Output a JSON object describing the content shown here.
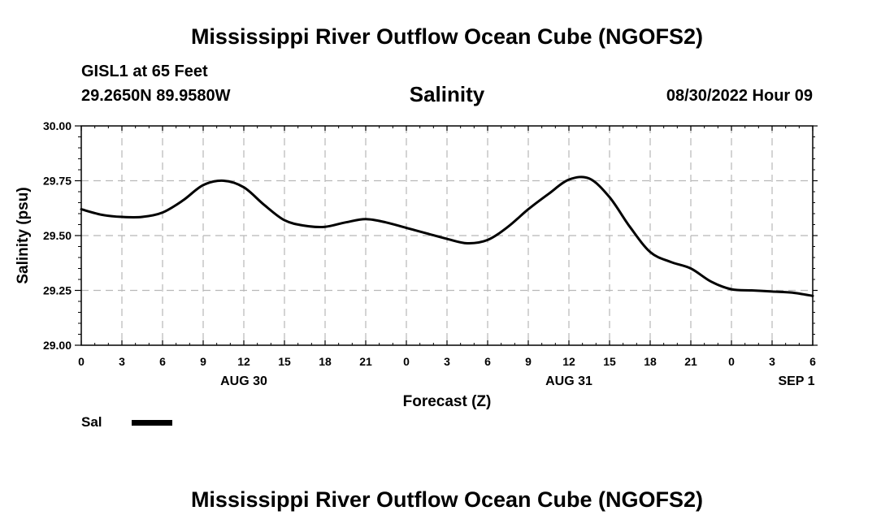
{
  "header": {
    "title": "Mississippi River Outflow Ocean Cube (NGOFS2)",
    "station": "GISL1 at 65 Feet",
    "coordinates": "29.2650N  89.9580W",
    "subtitle": "Salinity",
    "datetime": "08/30/2022 Hour 09"
  },
  "footer": {
    "title": "Mississippi River Outflow Ocean Cube (NGOFS2)"
  },
  "legend": {
    "series_label": "Sal"
  },
  "chart_data": {
    "type": "line",
    "title": "Salinity",
    "xlabel": "Forecast (Z)",
    "ylabel": "Salinity (psu)",
    "xlim": [
      0,
      54
    ],
    "ylim": [
      29.0,
      30.0
    ],
    "y_ticks": [
      30.0,
      29.75,
      29.5,
      29.25,
      29.0
    ],
    "y_tick_labels": [
      "30.00",
      "29.75",
      "29.50",
      "29.25",
      "29.00"
    ],
    "x_ticks": [
      0,
      3,
      6,
      9,
      12,
      15,
      18,
      21,
      24,
      27,
      30,
      33,
      36,
      39,
      42,
      45,
      48,
      51,
      54
    ],
    "x_tick_labels": [
      "0",
      "3",
      "6",
      "9",
      "12",
      "15",
      "18",
      "21",
      "0",
      "3",
      "6",
      "9",
      "12",
      "15",
      "18",
      "21",
      "0",
      "3",
      "6"
    ],
    "date_labels": [
      {
        "x": 12,
        "label": "AUG 30"
      },
      {
        "x": 36,
        "label": "AUG 31"
      },
      {
        "x": 52.8,
        "label": "SEP 1"
      }
    ],
    "grid": true,
    "series": [
      {
        "name": "Sal",
        "x": [
          0,
          1.5,
          3,
          4.5,
          6,
          7.5,
          9,
          10.5,
          12,
          13.5,
          15,
          16.5,
          18,
          19.5,
          21,
          22.5,
          24,
          25.5,
          27,
          28.5,
          30,
          31.5,
          33,
          34.5,
          36,
          37.5,
          39,
          40.5,
          42,
          43.5,
          45,
          46.5,
          48,
          49.5,
          51,
          52.5,
          54
        ],
        "values": [
          29.62,
          29.595,
          29.585,
          29.585,
          29.605,
          29.66,
          29.73,
          29.75,
          29.72,
          29.64,
          29.57,
          29.545,
          29.54,
          29.56,
          29.575,
          29.56,
          29.535,
          29.51,
          29.485,
          29.465,
          29.48,
          29.54,
          29.62,
          29.69,
          29.755,
          29.76,
          29.675,
          29.54,
          29.425,
          29.38,
          29.35,
          29.29,
          29.255,
          29.25,
          29.245,
          29.24,
          29.225
        ]
      }
    ]
  }
}
